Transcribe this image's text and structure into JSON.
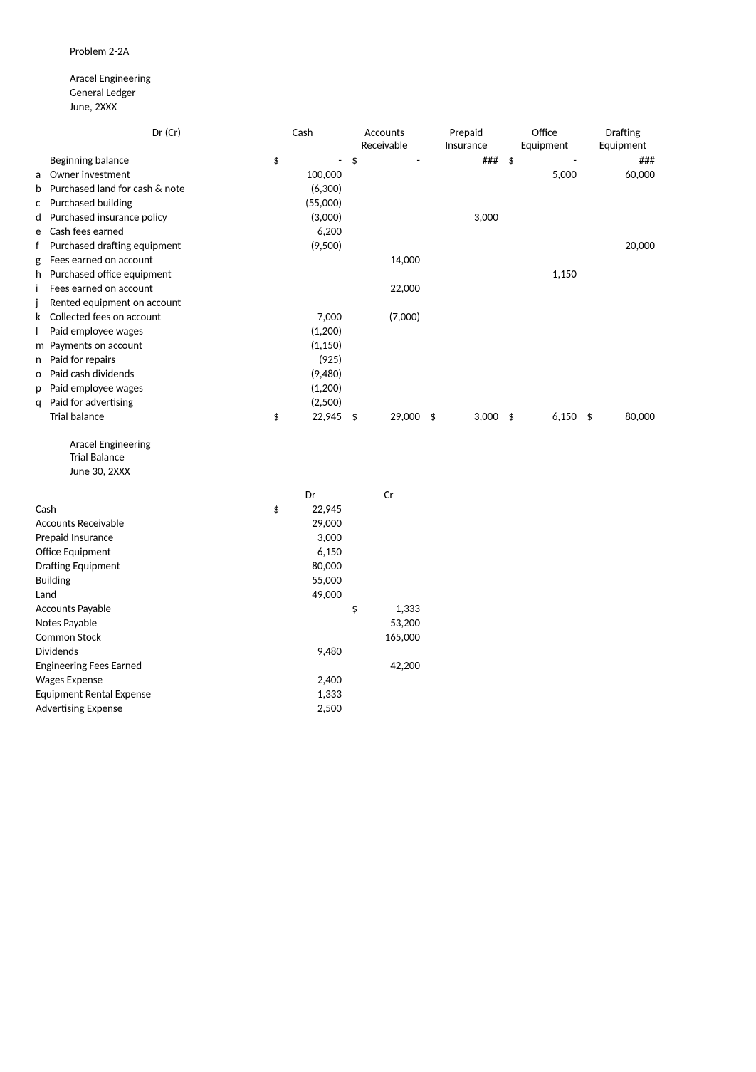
{
  "title": "Problem 2-2A",
  "company": "Aracel Engineering",
  "ledger_name": "General Ledger",
  "period": "June, 2XXX",
  "dr_cr_label": "Dr (Cr)",
  "columns": {
    "cash": [
      "",
      "Cash"
    ],
    "ar": [
      "Accounts",
      "Receivable"
    ],
    "pi": [
      "Prepaid",
      "Insurance"
    ],
    "oe": [
      "Office",
      "Equipment"
    ],
    "de": [
      "Drafting",
      "Equipment"
    ]
  },
  "ledger_rows": [
    {
      "idx": "",
      "desc": "Beginning balance",
      "cash_cur": "$",
      "cash": "-",
      "ar_cur": "$",
      "ar": "-",
      "pi_cur": "",
      "pi": "###",
      "oe_cur": "$",
      "oe": "-",
      "de_cur": "",
      "de": "###"
    },
    {
      "idx": "a",
      "desc": "Owner investment",
      "cash": "100,000",
      "oe": "5,000",
      "de": "60,000"
    },
    {
      "idx": "b",
      "desc": "Purchased land for cash & note",
      "cash": "(6,300)"
    },
    {
      "idx": "c",
      "desc": "Purchased building",
      "cash": "(55,000)"
    },
    {
      "idx": "d",
      "desc": "Purchased insurance policy",
      "cash": "(3,000)",
      "pi": "3,000"
    },
    {
      "idx": "e",
      "desc": "Cash fees earned",
      "cash": "6,200"
    },
    {
      "idx": "f",
      "desc": "Purchased drafting equipment",
      "cash": "(9,500)",
      "de": "20,000"
    },
    {
      "idx": "g",
      "desc": "Fees earned on account",
      "ar": "14,000"
    },
    {
      "idx": "h",
      "desc": "Purchased office equipment",
      "oe": "1,150"
    },
    {
      "idx": "i",
      "desc": "Fees earned on account",
      "ar": "22,000"
    },
    {
      "idx": "j",
      "desc": "Rented equipment on account"
    },
    {
      "idx": "k",
      "desc": "Collected fees on account",
      "cash": "7,000",
      "ar": "(7,000)"
    },
    {
      "idx": "l",
      "desc": "Paid employee wages",
      "cash": "(1,200)"
    },
    {
      "idx": "m",
      "desc": "Payments on account",
      "cash": "(1,150)"
    },
    {
      "idx": "n",
      "desc": "Paid for repairs",
      "cash": "(925)"
    },
    {
      "idx": "o",
      "desc": "Paid cash dividends",
      "cash": "(9,480)"
    },
    {
      "idx": "p",
      "desc": "Paid employee wages",
      "cash": "(1,200)"
    },
    {
      "idx": "q",
      "desc": "Paid for advertising",
      "cash": "(2,500)"
    },
    {
      "idx": "",
      "desc": "Trial balance",
      "cash_cur": "$",
      "cash": "22,945",
      "ar_cur": "$",
      "ar": "29,000",
      "pi_cur": "$",
      "pi": "3,000",
      "oe_cur": "$",
      "oe": "6,150",
      "de_cur": "$",
      "de": "80,000"
    }
  ],
  "trial_balance": {
    "company": "Aracel Engineering",
    "name": "Trial Balance",
    "date": "June 30, 2XXX",
    "dr_label": "Dr",
    "cr_label": "Cr",
    "rows": [
      {
        "desc": "Cash",
        "dr_cur": "$",
        "dr": "22,945"
      },
      {
        "desc": "Accounts Receivable",
        "dr": "29,000"
      },
      {
        "desc": "Prepaid Insurance",
        "dr": "3,000"
      },
      {
        "desc": "Office Equipment",
        "dr": "6,150"
      },
      {
        "desc": "Drafting Equipment",
        "dr": "80,000"
      },
      {
        "desc": "Building",
        "dr": "55,000"
      },
      {
        "desc": "Land",
        "dr": "49,000"
      },
      {
        "desc": "Accounts Payable",
        "cr_cur": "$",
        "cr": "1,333"
      },
      {
        "desc": "Notes Payable",
        "cr": "53,200"
      },
      {
        "desc": "Common Stock",
        "cr": "165,000"
      },
      {
        "desc": "Dividends",
        "dr": "9,480"
      },
      {
        "desc": "Engineering Fees Earned",
        "cr": "42,200"
      },
      {
        "desc": "Wages Expense",
        "dr": "2,400"
      },
      {
        "desc": "Equipment Rental Expense",
        "dr": "1,333"
      },
      {
        "desc": "Advertising Expense",
        "dr": "2,500"
      }
    ]
  }
}
